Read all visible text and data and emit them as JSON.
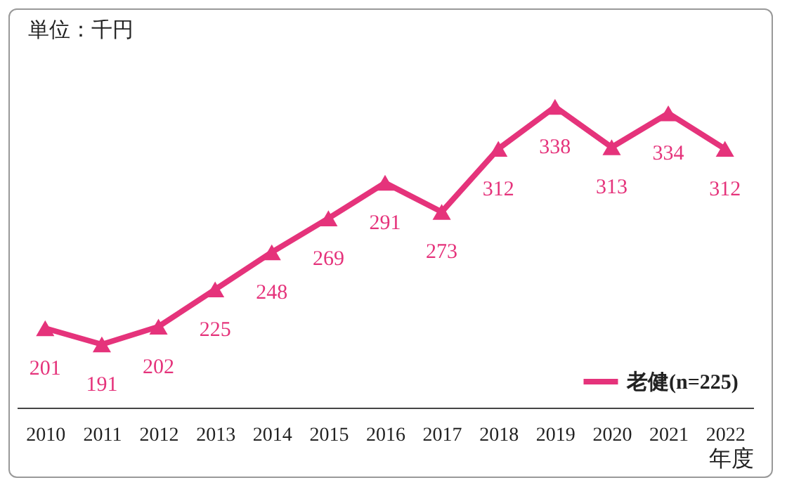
{
  "chart_data": {
    "type": "line",
    "annotations": [
      "単位：千円"
    ],
    "xlabel": "年度",
    "categories": [
      "2010",
      "2011",
      "2012",
      "2013",
      "2014",
      "2015",
      "2016",
      "2017",
      "2018",
      "2019",
      "2020",
      "2021",
      "2022"
    ],
    "series": [
      {
        "name": "老健(n=225)",
        "color": "#e5337b",
        "values": [
          201,
          191,
          202,
          225,
          248,
          269,
          291,
          273,
          312,
          338,
          313,
          334,
          312
        ]
      }
    ],
    "data_labels": true,
    "marker": "triangle",
    "legend": "bottom right",
    "grid": false
  }
}
